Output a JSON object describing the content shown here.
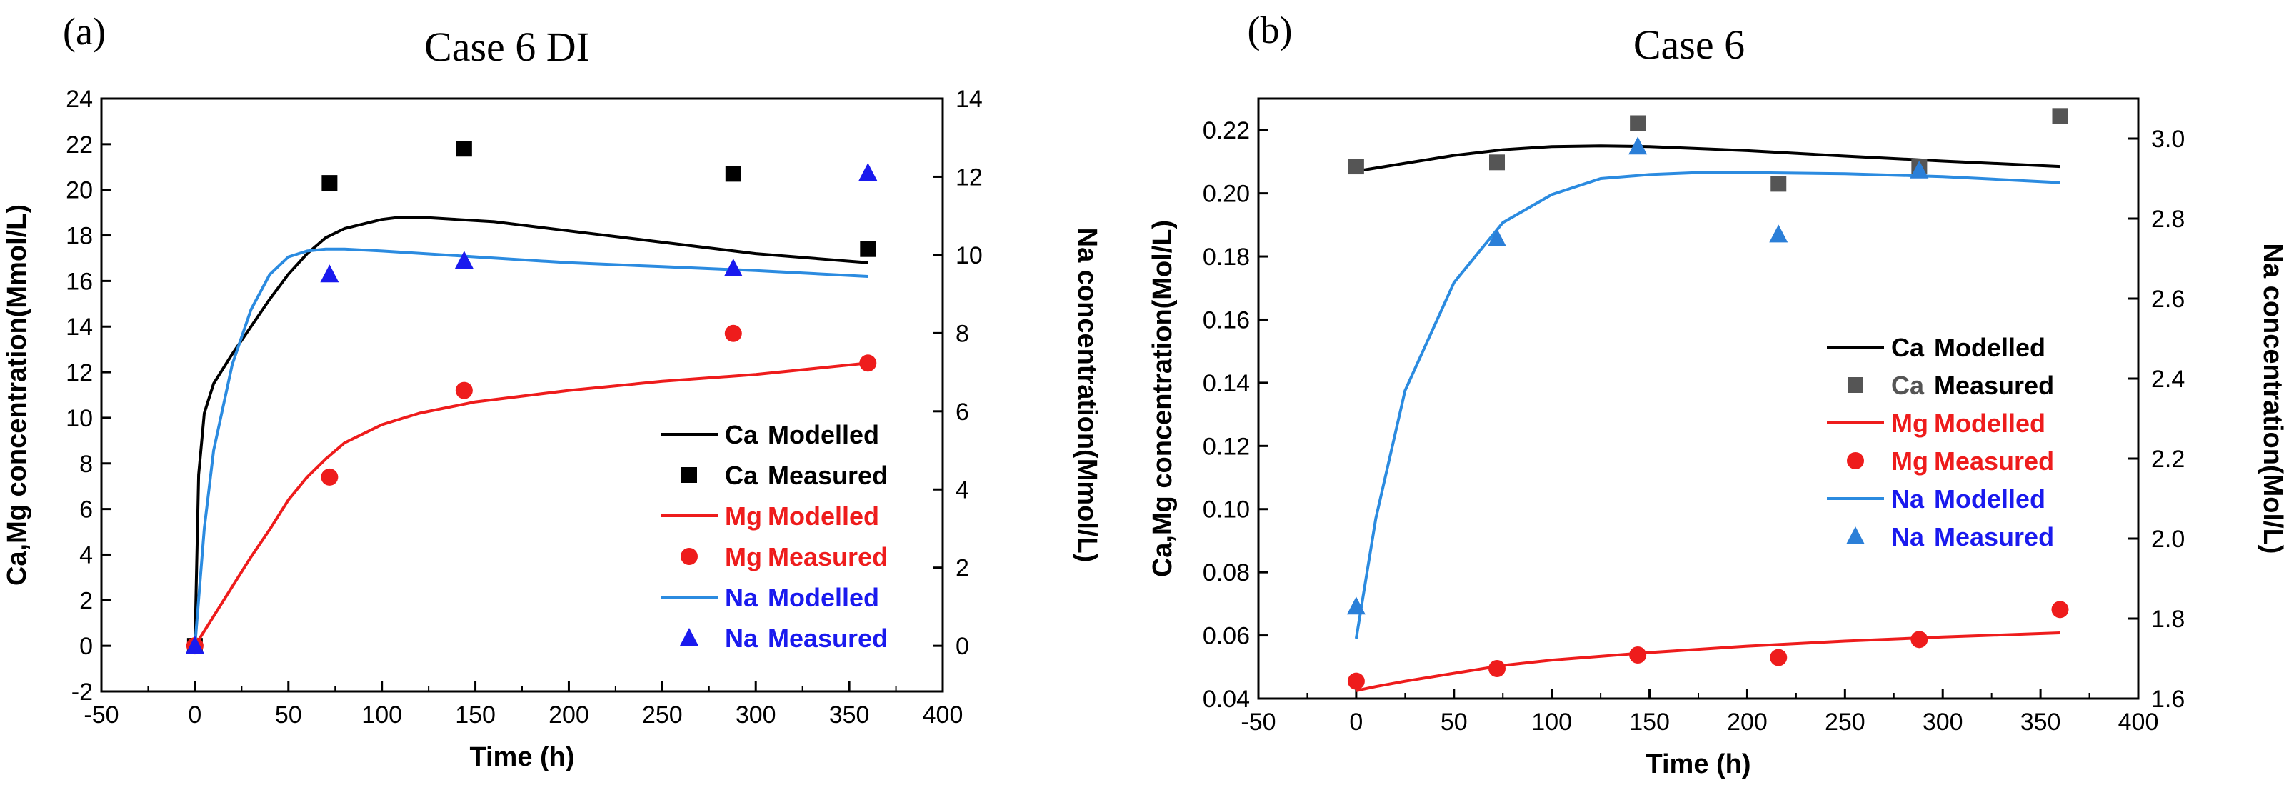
{
  "colors": {
    "ca_line": "#000000",
    "ca_marker_a": "#000000",
    "ca_marker_b": "#555555",
    "mg": "#ee1c1c",
    "na_line": "#2b8be0",
    "na_marker_a": "#1a1aee",
    "na_marker_b": "#2b7fd8",
    "legend_mg_text": "#ee1c1c",
    "legend_na_text": "#1a1aee"
  },
  "chart_data": [
    {
      "type": "line",
      "panel_label": "(a)",
      "title": "Case 6 DI",
      "xlabel": "Time (h)",
      "ylabel": "Ca,Mg  concentration(Mmol/L)",
      "y2label": "Na concentration(Mmol/L)",
      "xlim": [
        -50,
        400
      ],
      "ylim": [
        -2,
        24
      ],
      "y2lim": [
        -1.1667,
        14
      ],
      "xticks": [
        "-50",
        "0",
        "50",
        "100",
        "150",
        "200",
        "250",
        "300",
        "350",
        "400"
      ],
      "yticks": [
        "-2",
        "0",
        "2",
        "4",
        "6",
        "8",
        "10",
        "12",
        "14",
        "16",
        "18",
        "20",
        "22",
        "24"
      ],
      "y2ticks": [
        "0",
        "2",
        "4",
        "6",
        "8",
        "10",
        "12",
        "14"
      ],
      "legend": [
        {
          "sym": "Ca",
          "text": "Modelled"
        },
        {
          "sym": "Ca",
          "text": "Measured"
        },
        {
          "sym": "Mg",
          "text": "Modelled"
        },
        {
          "sym": "Mg",
          "text": "Measured"
        },
        {
          "sym": "Na",
          "text": "Modelled"
        },
        {
          "sym": "Na",
          "text": "Measured"
        }
      ],
      "series": [
        {
          "name": "Ca Modelled",
          "kind": "line",
          "axis": "left",
          "x": [
            0,
            2,
            5,
            10,
            20,
            30,
            40,
            50,
            60,
            70,
            80,
            90,
            100,
            110,
            120,
            140,
            160,
            200,
            250,
            300,
            360
          ],
          "values": [
            0,
            7.5,
            10.2,
            11.5,
            12.8,
            14.0,
            15.2,
            16.3,
            17.2,
            17.9,
            18.3,
            18.5,
            18.7,
            18.8,
            18.8,
            18.7,
            18.6,
            18.2,
            17.7,
            17.2,
            16.8
          ]
        },
        {
          "name": "Ca Measured",
          "kind": "square",
          "axis": "left",
          "x": [
            0,
            72,
            144,
            288,
            360
          ],
          "values": [
            0,
            20.3,
            21.8,
            20.7,
            17.4
          ]
        },
        {
          "name": "Mg Modelled",
          "kind": "line",
          "axis": "left",
          "x": [
            0,
            10,
            20,
            30,
            40,
            50,
            60,
            70,
            80,
            100,
            120,
            150,
            200,
            250,
            300,
            360
          ],
          "values": [
            0,
            1.3,
            2.6,
            3.9,
            5.1,
            6.4,
            7.4,
            8.2,
            8.9,
            9.7,
            10.2,
            10.7,
            11.2,
            11.6,
            11.9,
            12.4
          ]
        },
        {
          "name": "Mg Measured",
          "kind": "circle",
          "axis": "left",
          "x": [
            0,
            72,
            144,
            288,
            360
          ],
          "values": [
            0,
            7.4,
            11.2,
            13.7,
            12.4
          ]
        },
        {
          "name": "Na Modelled",
          "kind": "line",
          "axis": "right",
          "x": [
            0,
            5,
            10,
            20,
            30,
            40,
            50,
            60,
            70,
            80,
            100,
            150,
            200,
            250,
            300,
            360
          ],
          "values": [
            0,
            3.0,
            5.0,
            7.2,
            8.6,
            9.5,
            9.95,
            10.1,
            10.15,
            10.15,
            10.1,
            9.95,
            9.8,
            9.7,
            9.6,
            9.45
          ]
        },
        {
          "name": "Na Measured",
          "kind": "triangle",
          "axis": "right",
          "x": [
            0,
            72,
            144,
            288,
            360
          ],
          "values": [
            0,
            9.5,
            9.85,
            9.65,
            12.1
          ]
        }
      ]
    },
    {
      "type": "line",
      "panel_label": "(b)",
      "title": "Case 6",
      "xlabel": "Time (h)",
      "ylabel": "Ca,Mg  concentration(Mol/L)",
      "y2label": "Na concentration(Mol/L)",
      "xlim": [
        -50,
        400
      ],
      "ylim": [
        0.04,
        0.23
      ],
      "y2lim": [
        1.6,
        3.1
      ],
      "xticks": [
        "-50",
        "0",
        "50",
        "100",
        "150",
        "200",
        "250",
        "300",
        "350",
        "400"
      ],
      "yticks": [
        "0.04",
        "0.06",
        "0.08",
        "0.10",
        "0.12",
        "0.14",
        "0.16",
        "0.18",
        "0.20",
        "0.22"
      ],
      "y2ticks": [
        "1.6",
        "1.8",
        "2.0",
        "2.2",
        "2.4",
        "2.6",
        "2.8",
        "3.0"
      ],
      "legend": [
        {
          "sym": "Ca",
          "text": "Modelled"
        },
        {
          "sym": "Ca",
          "text": "Measured"
        },
        {
          "sym": "Mg",
          "text": "Modelled"
        },
        {
          "sym": "Mg",
          "text": "Measured"
        },
        {
          "sym": "Na",
          "text": "Modelled"
        },
        {
          "sym": "Na",
          "text": "Measured"
        }
      ],
      "series": [
        {
          "name": "Ca Modelled",
          "kind": "line",
          "axis": "left",
          "x": [
            0,
            25,
            50,
            75,
            100,
            125,
            150,
            200,
            250,
            300,
            360
          ],
          "values": [
            0.207,
            0.2095,
            0.212,
            0.2138,
            0.2148,
            0.215,
            0.2148,
            0.2135,
            0.2118,
            0.2102,
            0.2085
          ]
        },
        {
          "name": "Ca Measured",
          "kind": "square",
          "axis": "left",
          "x": [
            0,
            72,
            144,
            216,
            288,
            360
          ],
          "values": [
            0.2085,
            0.2098,
            0.2222,
            0.203,
            0.2085,
            0.2245
          ]
        },
        {
          "name": "Mg Modelled",
          "kind": "line",
          "axis": "left",
          "x": [
            0,
            10,
            25,
            50,
            75,
            100,
            150,
            200,
            250,
            300,
            360
          ],
          "values": [
            0.0425,
            0.0438,
            0.0455,
            0.048,
            0.0505,
            0.0522,
            0.0546,
            0.0566,
            0.0582,
            0.0595,
            0.0608
          ]
        },
        {
          "name": "Mg Measured",
          "kind": "circle",
          "axis": "left",
          "x": [
            0,
            72,
            144,
            216,
            288,
            360
          ],
          "values": [
            0.0455,
            0.0495,
            0.0538,
            0.053,
            0.0587,
            0.0682
          ]
        },
        {
          "name": "Na Modelled",
          "kind": "line",
          "axis": "right",
          "x": [
            0,
            10,
            25,
            50,
            75,
            100,
            125,
            150,
            175,
            200,
            250,
            300,
            360
          ],
          "values": [
            1.75,
            2.05,
            2.37,
            2.64,
            2.79,
            2.86,
            2.9,
            2.91,
            2.915,
            2.915,
            2.912,
            2.905,
            2.89
          ]
        },
        {
          "name": "Na Measured",
          "kind": "triangle",
          "axis": "right",
          "x": [
            0,
            72,
            144,
            216,
            288
          ],
          "values": [
            1.83,
            2.75,
            2.98,
            2.76,
            2.92
          ]
        }
      ]
    }
  ]
}
